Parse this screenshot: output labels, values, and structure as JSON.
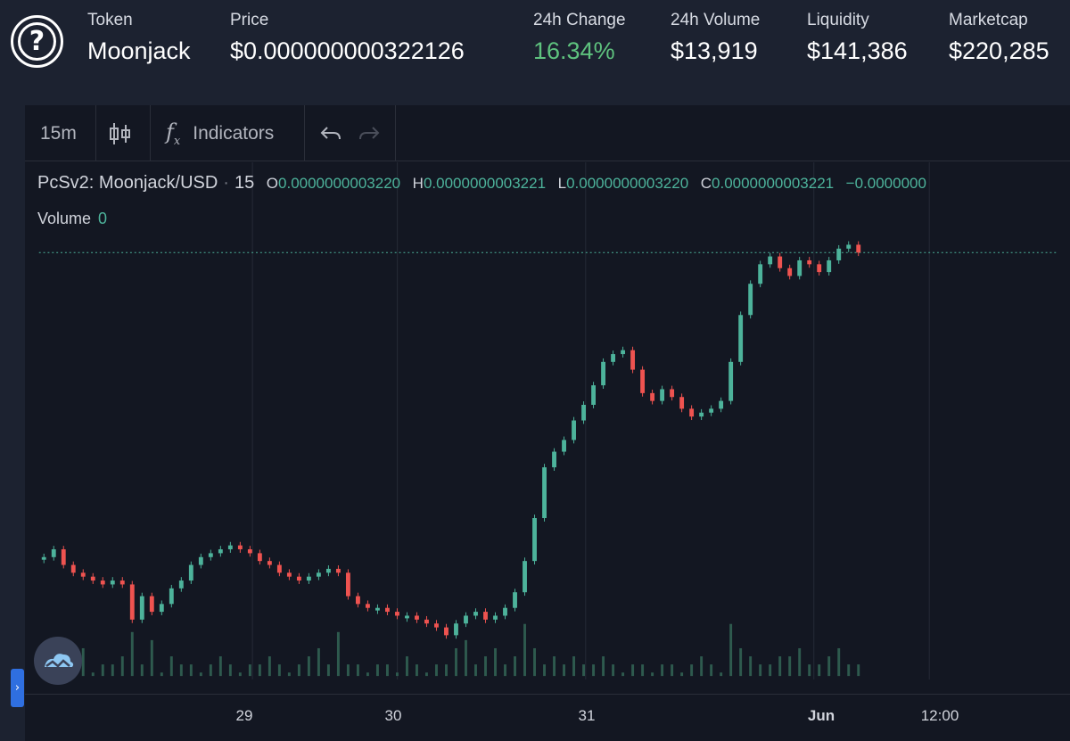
{
  "header": {
    "logo_icon": "question-mark-icon",
    "token": {
      "label": "Token",
      "value": "Moonjack"
    },
    "price": {
      "label": "Price",
      "value": "$0.000000000322126"
    },
    "change": {
      "label": "24h Change",
      "value": "16.34%",
      "color": "#5ec27e"
    },
    "volume": {
      "label": "24h Volume",
      "value": "$13,919"
    },
    "liquidity": {
      "label": "Liquidity",
      "value": "$141,386"
    },
    "marketcap": {
      "label": "Marketcap",
      "value": "$220,285"
    }
  },
  "toolbar": {
    "interval": "15m",
    "chart_type_icon": "candlestick-icon",
    "indicators_icon": "fx-icon",
    "indicators_label": "Indicators",
    "undo_icon": "undo-icon",
    "redo_icon": "redo-icon"
  },
  "legend": {
    "symbol": "PcSv2: Moonjack/USD",
    "interval": "15",
    "o_label": "O",
    "o_value": "0.0000000003220",
    "h_label": "H",
    "h_value": "0.0000000003221",
    "l_label": "L",
    "l_value": "0.0000000003220",
    "c_label": "C",
    "c_value": "0.0000000003221",
    "change_value": "−0.0000000",
    "volume_label": "Volume",
    "volume_value": "0"
  },
  "colors": {
    "up": "#4db39b",
    "down": "#ef5350",
    "volume": "#2e5a4e",
    "grid": "#262b38"
  },
  "chart_data": {
    "type": "candlestick",
    "x_ticks": [
      "29",
      "30",
      "31",
      "Jun",
      "12:00"
    ],
    "series": [
      {
        "name": "Price",
        "values": [
          0.2,
          0.22,
          0.18,
          0.16,
          0.15,
          0.14,
          0.13,
          0.14,
          0.13,
          0.04,
          0.1,
          0.06,
          0.08,
          0.12,
          0.14,
          0.18,
          0.2,
          0.21,
          0.22,
          0.23,
          0.22,
          0.21,
          0.19,
          0.18,
          0.16,
          0.15,
          0.14,
          0.15,
          0.16,
          0.17,
          0.16,
          0.1,
          0.08,
          0.07,
          0.07,
          0.06,
          0.05,
          0.05,
          0.04,
          0.03,
          0.02,
          0.0,
          0.03,
          0.05,
          0.06,
          0.04,
          0.05,
          0.07,
          0.11,
          0.19,
          0.3,
          0.43,
          0.47,
          0.5,
          0.55,
          0.59,
          0.64,
          0.7,
          0.72,
          0.73,
          0.68,
          0.62,
          0.6,
          0.63,
          0.61,
          0.58,
          0.56,
          0.57,
          0.58,
          0.6,
          0.7,
          0.82,
          0.9,
          0.95,
          0.97,
          0.94,
          0.92,
          0.96,
          0.95,
          0.93,
          0.96,
          0.99,
          1.0,
          0.98
        ]
      },
      {
        "name": "Volume",
        "values": [
          1,
          0,
          2,
          1,
          3,
          0,
          1,
          1,
          2,
          5,
          1,
          4,
          0,
          2,
          1,
          1,
          0,
          1,
          2,
          1,
          0,
          1,
          1,
          2,
          1,
          0,
          1,
          2,
          3,
          1,
          5,
          1,
          1,
          0,
          1,
          1,
          0,
          2,
          1,
          0,
          1,
          1,
          3,
          4,
          1,
          2,
          3,
          1,
          2,
          6,
          3,
          1,
          2,
          1,
          2,
          1,
          1,
          2,
          1,
          0,
          1,
          1,
          0,
          1,
          1,
          0,
          1,
          2,
          1,
          0,
          6,
          3,
          2,
          1,
          1,
          2,
          2,
          3,
          1,
          1,
          2,
          3,
          1,
          1
        ]
      }
    ]
  }
}
